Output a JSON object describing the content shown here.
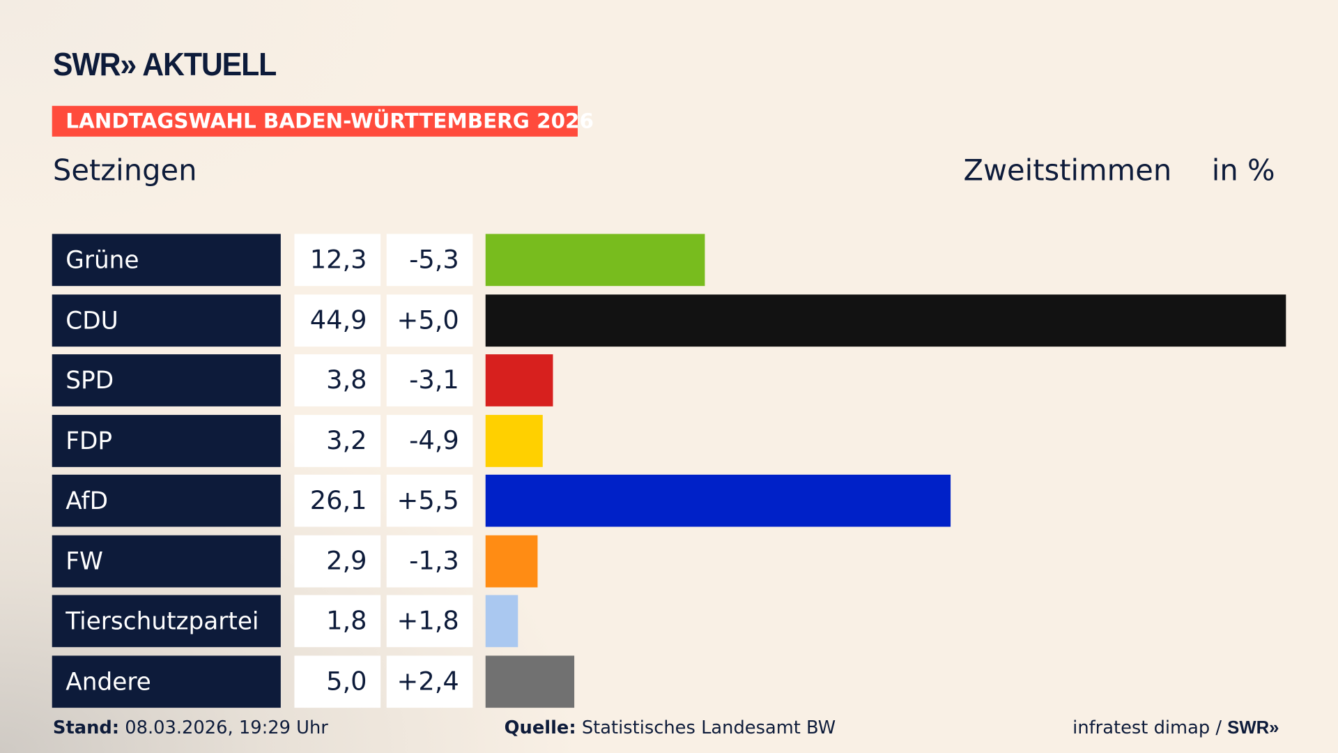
{
  "header": {
    "logo": "SWR» AKTUELL",
    "tag": "LANDTAGSWAHL BADEN-WÜRTTEMBERG 2026",
    "place": "Setzingen",
    "metric": "Zweitstimmen",
    "unit": "in %"
  },
  "chart_data": {
    "type": "bar",
    "orientation": "horizontal",
    "categories": [
      "Grüne",
      "CDU",
      "SPD",
      "FDP",
      "AfD",
      "FW",
      "Tierschutzpartei",
      "Andere"
    ],
    "values": [
      12.3,
      44.9,
      3.8,
      3.2,
      26.1,
      2.9,
      1.8,
      5.0
    ],
    "values_label": [
      "12,3",
      "44,9",
      "3,8",
      "3,2",
      "26,1",
      "2,9",
      "1,8",
      "5,0"
    ],
    "diff_label": [
      "-5,3",
      "+5,0",
      "-3,1",
      "-4,9",
      "+5,5",
      "-1,3",
      "+1,8",
      "+2,4"
    ],
    "colors": [
      "#78bc1e",
      "#121212",
      "#d7201e",
      "#ffd000",
      "#0021c8",
      "#ff8c14",
      "#aac8f0",
      "#717171"
    ],
    "xlim": [
      0,
      44.9
    ]
  },
  "footer": {
    "stand_label": "Stand:",
    "stand": "08.03.2026, 19:29 Uhr",
    "source_label": "Quelle:",
    "source": "Statistisches Landesamt BW",
    "credit": "infratest dimap / ",
    "credit_logo": "SWR»"
  }
}
